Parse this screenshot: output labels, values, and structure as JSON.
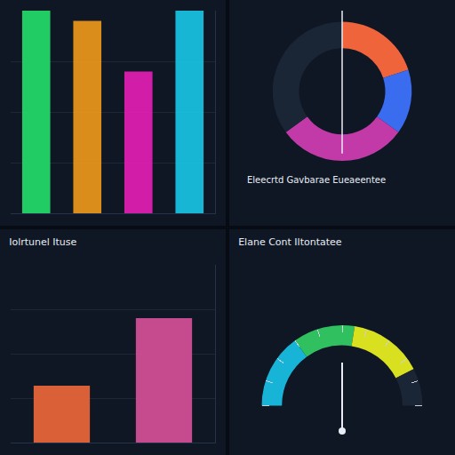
{
  "chart_data": [
    {
      "type": "bar",
      "categories": [
        null,
        null,
        null,
        null
      ],
      "values": [
        100,
        95,
        70,
        100
      ],
      "colors": [
        "#22e06a",
        "#f29a1c",
        "#e81eb8",
        "#18c8e8"
      ],
      "ylim": [
        0,
        100
      ],
      "yticks": [
        0,
        25,
        50,
        75,
        100
      ],
      "grid": true,
      "tick_labels": false
    },
    {
      "type": "donut",
      "title": "Eleecrtd Gavbarae Eueaeentee",
      "categories": [
        null,
        null,
        null,
        null
      ],
      "values": [
        20,
        15,
        30,
        35
      ],
      "colors": [
        "#f0643c",
        "#3a6cf0",
        "#c23aa8",
        "#1a2536"
      ]
    },
    {
      "type": "bar",
      "title": "Iolrtunel Ituse",
      "categories": [
        null,
        null
      ],
      "values": [
        32,
        70
      ],
      "colors": [
        "#f0683a",
        "#d9509a"
      ],
      "ylim": [
        0,
        100
      ],
      "yticks": [
        0,
        25,
        50,
        75,
        100
      ],
      "grid": true,
      "tick_labels": false
    },
    {
      "type": "gauge",
      "title": "Elane Cont Iltontatee",
      "value": 50,
      "ylim": [
        0,
        100
      ],
      "bands": [
        {
          "from": 0,
          "to": 30,
          "color": "#18b4d8"
        },
        {
          "from": 30,
          "to": 55,
          "color": "#30c060"
        },
        {
          "from": 55,
          "to": 85,
          "color": "#d8e020"
        },
        {
          "from": 85,
          "to": 100,
          "color": "#1a2536"
        }
      ],
      "tick_labels": false
    }
  ]
}
